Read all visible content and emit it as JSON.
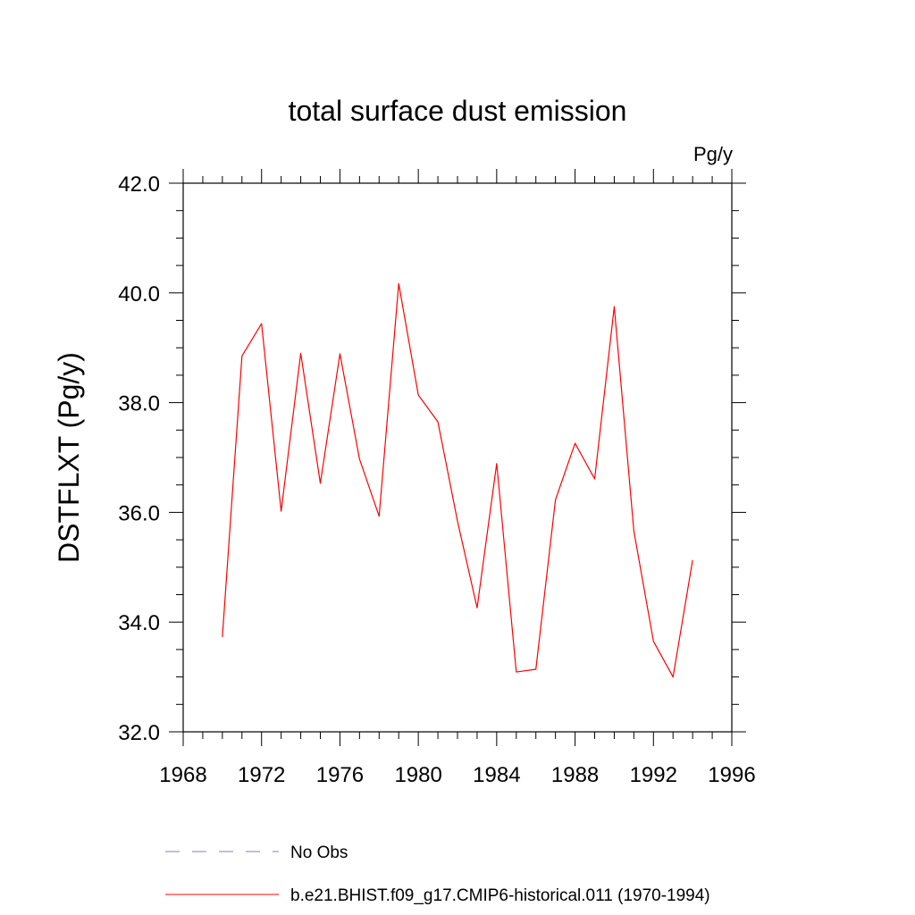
{
  "chart_data": {
    "type": "line",
    "title": "total surface dust emission",
    "units_label": "Pg/y",
    "xlabel": "",
    "ylabel": "DSTFLXT  (Pg/y)",
    "xlim": [
      1968,
      1996
    ],
    "ylim": [
      32.0,
      42.0
    ],
    "x_ticks": [
      "1968",
      "1972",
      "1976",
      "1980",
      "1984",
      "1988",
      "1992",
      "1996"
    ],
    "y_ticks": [
      "32.0",
      "34.0",
      "36.0",
      "38.0",
      "40.0",
      "42.0"
    ],
    "grid": false,
    "legend_position": "bottom",
    "series": [
      {
        "name": "b.e21.BHIST.f09_g17.CMIP6-historical.011 (1970-1994)",
        "color": "#ff0000",
        "line_style": "solid",
        "x": [
          1970,
          1971,
          1972,
          1973,
          1974,
          1975,
          1976,
          1977,
          1978,
          1979,
          1980,
          1981,
          1982,
          1983,
          1984,
          1985,
          1986,
          1987,
          1988,
          1989,
          1990,
          1991,
          1992,
          1993,
          1994
        ],
        "y": [
          33.73,
          38.85,
          39.44,
          36.02,
          38.9,
          36.53,
          38.89,
          36.97,
          35.93,
          40.17,
          38.14,
          37.65,
          35.84,
          34.26,
          36.89,
          33.09,
          33.14,
          36.23,
          37.26,
          36.61,
          39.75,
          35.66,
          33.65,
          33.0,
          35.13
        ]
      }
    ],
    "legend": [
      {
        "label": "No Obs",
        "color": "#7f7fbf",
        "line_style": "dashed"
      },
      {
        "label": "b.e21.BHIST.f09_g17.CMIP6-historical.011 (1970-1994)",
        "color": "#ff0000",
        "line_style": "solid"
      }
    ]
  }
}
